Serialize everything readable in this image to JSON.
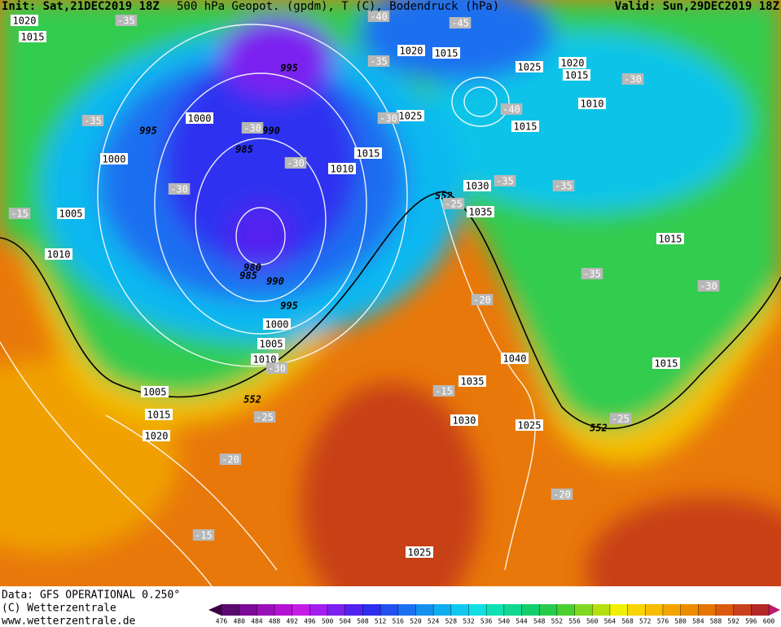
{
  "header": {
    "init": "Init: Sat,21DEC2019 18Z",
    "title": "500 hPa Geopot. (gpdm), T (C), Bodendruck (hPa)",
    "valid": "Valid: Sun,29DEC2019 18Z"
  },
  "map": {
    "labels": [
      "1020",
      "1015",
      "995",
      "1000",
      "995",
      "1000",
      "985",
      "990",
      "1005",
      "1010",
      "980",
      "985",
      "990",
      "995",
      "1000",
      "1005",
      "1010",
      "1005",
      "1015",
      "1020",
      "1020",
      "1015",
      "1025",
      "1015",
      "1010",
      "1030",
      "1035",
      "1040",
      "1035",
      "1030",
      "1025",
      "1025",
      "1025",
      "1020",
      "1015",
      "1010",
      "1015",
      "1015",
      "1015",
      "552",
      "552",
      "552",
      "-35",
      "-40",
      "-45",
      "-35",
      "-30",
      "-40",
      "-35",
      "-30",
      "-30",
      "-30",
      "-35",
      "-35",
      "-30",
      "-25",
      "-15",
      "-20",
      "-35",
      "-30",
      "-30",
      "-15",
      "-25",
      "-25",
      "-20",
      "-20",
      "-15"
    ]
  },
  "footer": {
    "data": "Data: GFS OPERATIONAL 0.250°",
    "copyright": "(C) Wetterzentrale",
    "url": "www.wetterzentrale.de"
  },
  "colorbar": {
    "levels": [
      476,
      480,
      484,
      488,
      492,
      496,
      500,
      504,
      508,
      512,
      516,
      520,
      524,
      528,
      532,
      536,
      540,
      544,
      548,
      552,
      556,
      560,
      564,
      568,
      572,
      576,
      580,
      584,
      588,
      592,
      596,
      600
    ],
    "colors": [
      "#3c0040",
      "#5a0a6e",
      "#7c0c96",
      "#9a10b8",
      "#b414d2",
      "#c41ee6",
      "#a41ef0",
      "#7c20f0",
      "#5222f0",
      "#2e2ef0",
      "#2450f0",
      "#1c70f0",
      "#1490f0",
      "#10aef0",
      "#10c8f0",
      "#10e0e4",
      "#10e0b4",
      "#10d890",
      "#14d06c",
      "#28cc4c",
      "#4cd030",
      "#80d820",
      "#b4e010",
      "#f0f000",
      "#f8d400",
      "#f8bc00",
      "#f4a400",
      "#ee8c00",
      "#e67400",
      "#dc5a10",
      "#c8401c",
      "#b42828",
      "#c0186c"
    ]
  }
}
